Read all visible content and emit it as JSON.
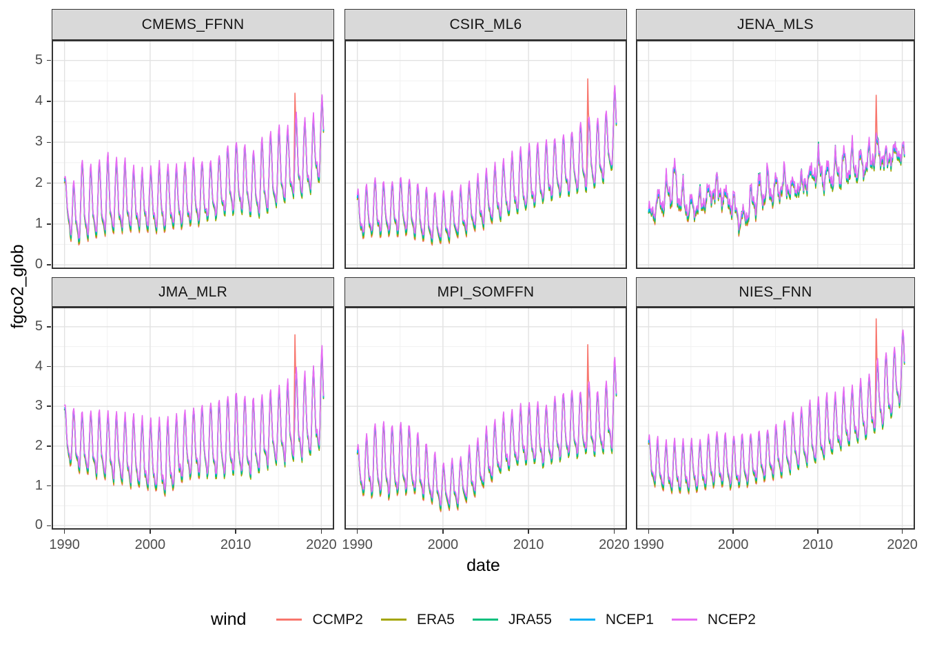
{
  "axes": {
    "x_title": "date",
    "y_title": "fgco2_glob"
  },
  "legend": {
    "title": "wind",
    "items": [
      {
        "label": "CCMP2",
        "color": "#F8766D"
      },
      {
        "label": "ERA5",
        "color": "#A3A500"
      },
      {
        "label": "JRA55",
        "color": "#00BF7D"
      },
      {
        "label": "NCEP1",
        "color": "#00B0F6"
      },
      {
        "label": "NCEP2",
        "color": "#E76BF3"
      }
    ]
  },
  "chart_data": {
    "type": "line",
    "faceted": true,
    "facet_layout": {
      "rows": 2,
      "cols": 3
    },
    "xlabel": "date",
    "ylabel": "fgco2_glob",
    "x_ticks": [
      1990,
      2000,
      2010,
      2020
    ],
    "x_minor": [
      1995,
      2005,
      2015
    ],
    "y_ticks": [
      0,
      1,
      2,
      3,
      4,
      5
    ],
    "y_minor": [
      0.5,
      1.5,
      2.5,
      3.5,
      4.5
    ],
    "x_domain": [
      1988.5,
      2021.5
    ],
    "y_domain": [
      -0.1,
      5.5
    ],
    "grid": true,
    "legend_position": "bottom",
    "series": [
      {
        "name": "CCMP2",
        "color": "#F8766D"
      },
      {
        "name": "ERA5",
        "color": "#A3A500"
      },
      {
        "name": "JRA55",
        "color": "#00BF7D"
      },
      {
        "name": "NCEP1",
        "color": "#00B0F6"
      },
      {
        "name": "NCEP2",
        "color": "#E76BF3"
      }
    ],
    "render": {
      "t_start": 1990.0,
      "t_end": 2020.3,
      "months_per_year": 12,
      "seasonal_phase": 0.1,
      "harmonics": [
        0.72,
        0.28
      ],
      "line_width": 1.6,
      "offsets": {
        "CCMP2": {
          "base": -0.02,
          "trough": -0.05,
          "trough_early": -0.16,
          "early_until": 2006
        },
        "ERA5": {
          "base": -0.03,
          "trough": -0.1
        },
        "JRA55": {
          "base": -0.01,
          "trough": -0.06
        },
        "NCEP1": {
          "base": 0.015,
          "trough": -0.01
        },
        "NCEP2": {
          "base": 0.035,
          "peak": 0.06
        }
      }
    },
    "facets": [
      {
        "name": "CMEMS_FFNN",
        "seed": 1,
        "noise": 0.12,
        "seasonal": 0.95,
        "jra_peak": 0.08,
        "spike": {
          "series": "CCMP2",
          "t": 2016.92,
          "value": 4.2
        },
        "peak_envelope": [
          [
            1990,
            2.15
          ],
          [
            1991,
            1.95
          ],
          [
            1992,
            2.55
          ],
          [
            1993,
            2.35
          ],
          [
            1995,
            2.65
          ],
          [
            1997,
            2.55
          ],
          [
            1999,
            2.3
          ],
          [
            2001,
            2.45
          ],
          [
            2003,
            2.35
          ],
          [
            2005,
            2.55
          ],
          [
            2007,
            2.5
          ],
          [
            2009,
            2.9
          ],
          [
            2010,
            3.05
          ],
          [
            2011,
            2.9
          ],
          [
            2012,
            2.75
          ],
          [
            2013,
            3.0
          ],
          [
            2014,
            3.2
          ],
          [
            2015,
            3.3
          ],
          [
            2016,
            3.35
          ],
          [
            2017,
            3.65
          ],
          [
            2018,
            3.6
          ],
          [
            2019,
            3.6
          ],
          [
            2020,
            4.15
          ]
        ],
        "trough_envelope": [
          [
            1990,
            1.15
          ],
          [
            1991,
            0.25
          ],
          [
            1992,
            0.35
          ],
          [
            1993,
            0.45
          ],
          [
            1995,
            0.5
          ],
          [
            1997,
            0.55
          ],
          [
            1999,
            0.65
          ],
          [
            2001,
            0.6
          ],
          [
            2003,
            0.75
          ],
          [
            2005,
            0.75
          ],
          [
            2007,
            0.85
          ],
          [
            2009,
            0.95
          ],
          [
            2011,
            1.05
          ],
          [
            2013,
            0.95
          ],
          [
            2015,
            1.2
          ],
          [
            2017,
            1.35
          ],
          [
            2018,
            1.3
          ],
          [
            2019,
            1.5
          ],
          [
            2020,
            1.8
          ]
        ]
      },
      {
        "name": "CSIR_ML6",
        "seed": 2,
        "noise": 0.12,
        "seasonal": 0.95,
        "jra_peak": 0.08,
        "spike": {
          "series": "CCMP2",
          "t": 2016.92,
          "value": 4.55
        },
        "peak_envelope": [
          [
            1990,
            1.75
          ],
          [
            1992,
            2.1
          ],
          [
            1994,
            2.0
          ],
          [
            1995,
            2.15
          ],
          [
            1997,
            1.95
          ],
          [
            1999,
            1.7
          ],
          [
            2001,
            1.75
          ],
          [
            2003,
            2.0
          ],
          [
            2005,
            2.3
          ],
          [
            2007,
            2.5
          ],
          [
            2009,
            2.8
          ],
          [
            2011,
            2.95
          ],
          [
            2013,
            3.1
          ],
          [
            2015,
            3.25
          ],
          [
            2016,
            3.45
          ],
          [
            2017,
            3.6
          ],
          [
            2018,
            3.5
          ],
          [
            2019,
            3.65
          ],
          [
            2020,
            4.3
          ]
        ],
        "trough_envelope": [
          [
            1990,
            0.55
          ],
          [
            1992,
            0.5
          ],
          [
            1994,
            0.55
          ],
          [
            1996,
            0.6
          ],
          [
            1998,
            0.45
          ],
          [
            2000,
            0.4
          ],
          [
            2002,
            0.55
          ],
          [
            2004,
            0.7
          ],
          [
            2006,
            0.9
          ],
          [
            2008,
            1.05
          ],
          [
            2010,
            1.15
          ],
          [
            2012,
            1.3
          ],
          [
            2014,
            1.45
          ],
          [
            2016,
            1.55
          ],
          [
            2018,
            1.7
          ],
          [
            2020,
            2.1
          ]
        ]
      },
      {
        "name": "JENA_MLS",
        "seed": 3,
        "noise": 0.55,
        "seasonal": 0.55,
        "jra_peak": 0.15,
        "spike": {
          "series": "CCMP2",
          "t": 2016.92,
          "value": 4.15
        },
        "peak_envelope": [
          [
            1990,
            1.5
          ],
          [
            1991,
            1.9
          ],
          [
            1992,
            2.2
          ],
          [
            1993,
            2.75
          ],
          [
            1994,
            2.1
          ],
          [
            1995,
            1.8
          ],
          [
            1996,
            1.9
          ],
          [
            1997,
            2.2
          ],
          [
            1998,
            2.5
          ],
          [
            1999,
            2.2
          ],
          [
            2000,
            2.0
          ],
          [
            2001,
            1.45
          ],
          [
            2002,
            2.0
          ],
          [
            2003,
            2.3
          ],
          [
            2004,
            2.45
          ],
          [
            2005,
            2.3
          ],
          [
            2006,
            2.55
          ],
          [
            2007,
            2.3
          ],
          [
            2008,
            2.4
          ],
          [
            2009,
            2.7
          ],
          [
            2010,
            3.05
          ],
          [
            2011,
            2.7
          ],
          [
            2012,
            2.8
          ],
          [
            2013,
            3.0
          ],
          [
            2014,
            3.05
          ],
          [
            2015,
            2.9
          ],
          [
            2016,
            3.1
          ],
          [
            2017,
            3.5
          ],
          [
            2018,
            3.05
          ],
          [
            2019,
            3.25
          ],
          [
            2020,
            3.1
          ]
        ],
        "trough_envelope": [
          [
            1990,
            0.85
          ],
          [
            1991,
            1.05
          ],
          [
            1992,
            1.15
          ],
          [
            1993,
            1.35
          ],
          [
            1994,
            1.0
          ],
          [
            1995,
            0.95
          ],
          [
            1996,
            1.05
          ],
          [
            1997,
            1.15
          ],
          [
            1998,
            1.25
          ],
          [
            1999,
            1.1
          ],
          [
            2000,
            0.95
          ],
          [
            2001,
            0.62
          ],
          [
            2002,
            0.95
          ],
          [
            2003,
            1.2
          ],
          [
            2004,
            1.3
          ],
          [
            2005,
            1.35
          ],
          [
            2006,
            1.45
          ],
          [
            2007,
            1.4
          ],
          [
            2008,
            1.45
          ],
          [
            2009,
            1.55
          ],
          [
            2010,
            1.7
          ],
          [
            2011,
            1.6
          ],
          [
            2012,
            1.7
          ],
          [
            2013,
            1.75
          ],
          [
            2014,
            1.85
          ],
          [
            2015,
            1.9
          ],
          [
            2016,
            2.0
          ],
          [
            2017,
            2.1
          ],
          [
            2018,
            2.05
          ],
          [
            2019,
            2.2
          ],
          [
            2020,
            2.35
          ]
        ]
      },
      {
        "name": "JMA_MLR",
        "seed": 4,
        "noise": 0.12,
        "seasonal": 0.95,
        "jra_peak": 0.08,
        "spike": {
          "series": "CCMP2",
          "t": 2016.92,
          "value": 4.8
        },
        "peak_envelope": [
          [
            1990,
            3.0
          ],
          [
            1992,
            2.85
          ],
          [
            1994,
            2.9
          ],
          [
            1996,
            2.8
          ],
          [
            1998,
            2.7
          ],
          [
            2000,
            2.6
          ],
          [
            2002,
            2.7
          ],
          [
            2004,
            2.9
          ],
          [
            2006,
            3.0
          ],
          [
            2008,
            3.1
          ],
          [
            2010,
            3.3
          ],
          [
            2012,
            3.2
          ],
          [
            2014,
            3.4
          ],
          [
            2016,
            3.6
          ],
          [
            2017,
            3.9
          ],
          [
            2018,
            3.75
          ],
          [
            2019,
            3.85
          ],
          [
            2020,
            4.4
          ]
        ],
        "trough_envelope": [
          [
            1990,
            1.45
          ],
          [
            1992,
            1.1
          ],
          [
            1994,
            1.0
          ],
          [
            1996,
            0.9
          ],
          [
            1998,
            0.8
          ],
          [
            2000,
            0.7
          ],
          [
            2002,
            0.42
          ],
          [
            2004,
            0.9
          ],
          [
            2006,
            1.0
          ],
          [
            2008,
            0.95
          ],
          [
            2010,
            1.0
          ],
          [
            2012,
            0.85
          ],
          [
            2014,
            1.2
          ],
          [
            2016,
            1.3
          ],
          [
            2018,
            1.4
          ],
          [
            2020,
            1.6
          ]
        ]
      },
      {
        "name": "MPI_SOMFFN",
        "seed": 5,
        "noise": 0.12,
        "seasonal": 0.95,
        "jra_peak": 0.08,
        "spike": {
          "series": "CCMP2",
          "t": 2016.92,
          "value": 4.55
        },
        "peak_envelope": [
          [
            1990,
            2.0
          ],
          [
            1991,
            2.2
          ],
          [
            1992,
            2.55
          ],
          [
            1994,
            2.5
          ],
          [
            1996,
            2.55
          ],
          [
            1998,
            2.1
          ],
          [
            2000,
            1.55
          ],
          [
            2002,
            1.65
          ],
          [
            2004,
            2.1
          ],
          [
            2006,
            2.6
          ],
          [
            2008,
            2.9
          ],
          [
            2010,
            3.1
          ],
          [
            2012,
            3.0
          ],
          [
            2014,
            3.3
          ],
          [
            2016,
            3.35
          ],
          [
            2017,
            3.6
          ],
          [
            2018,
            3.4
          ],
          [
            2019,
            3.55
          ],
          [
            2020,
            4.3
          ]
        ],
        "trough_envelope": [
          [
            1990,
            0.62
          ],
          [
            1992,
            0.55
          ],
          [
            1994,
            0.5
          ],
          [
            1996,
            0.6
          ],
          [
            1998,
            0.45
          ],
          [
            2000,
            0.27
          ],
          [
            2002,
            0.38
          ],
          [
            2004,
            0.7
          ],
          [
            2006,
            1.0
          ],
          [
            2008,
            1.2
          ],
          [
            2010,
            1.35
          ],
          [
            2012,
            1.3
          ],
          [
            2014,
            1.5
          ],
          [
            2016,
            1.5
          ],
          [
            2018,
            1.5
          ],
          [
            2020,
            1.55
          ]
        ]
      },
      {
        "name": "NIES_FNN",
        "seed": 6,
        "noise": 0.12,
        "seasonal": 0.95,
        "jra_peak": 0.08,
        "spike": {
          "series": "CCMP2",
          "t": 2016.92,
          "value": 5.2
        },
        "peak_envelope": [
          [
            1990,
            2.2
          ],
          [
            1992,
            2.1
          ],
          [
            1994,
            2.15
          ],
          [
            1996,
            2.1
          ],
          [
            1998,
            2.3
          ],
          [
            2000,
            2.2
          ],
          [
            2002,
            2.3
          ],
          [
            2004,
            2.4
          ],
          [
            2006,
            2.6
          ],
          [
            2008,
            2.9
          ],
          [
            2010,
            3.15
          ],
          [
            2012,
            3.3
          ],
          [
            2014,
            3.5
          ],
          [
            2016,
            3.75
          ],
          [
            2017,
            4.1
          ],
          [
            2018,
            4.3
          ],
          [
            2019,
            4.35
          ],
          [
            2020,
            4.9
          ]
        ],
        "trough_envelope": [
          [
            1990,
            1.0
          ],
          [
            1992,
            0.7
          ],
          [
            1994,
            0.65
          ],
          [
            1996,
            0.75
          ],
          [
            1998,
            0.9
          ],
          [
            2000,
            0.8
          ],
          [
            2002,
            0.85
          ],
          [
            2004,
            1.0
          ],
          [
            2006,
            1.1
          ],
          [
            2008,
            1.3
          ],
          [
            2010,
            1.4
          ],
          [
            2012,
            1.6
          ],
          [
            2014,
            1.8
          ],
          [
            2016,
            2.0
          ],
          [
            2018,
            2.3
          ],
          [
            2020,
            2.9
          ]
        ]
      }
    ]
  }
}
